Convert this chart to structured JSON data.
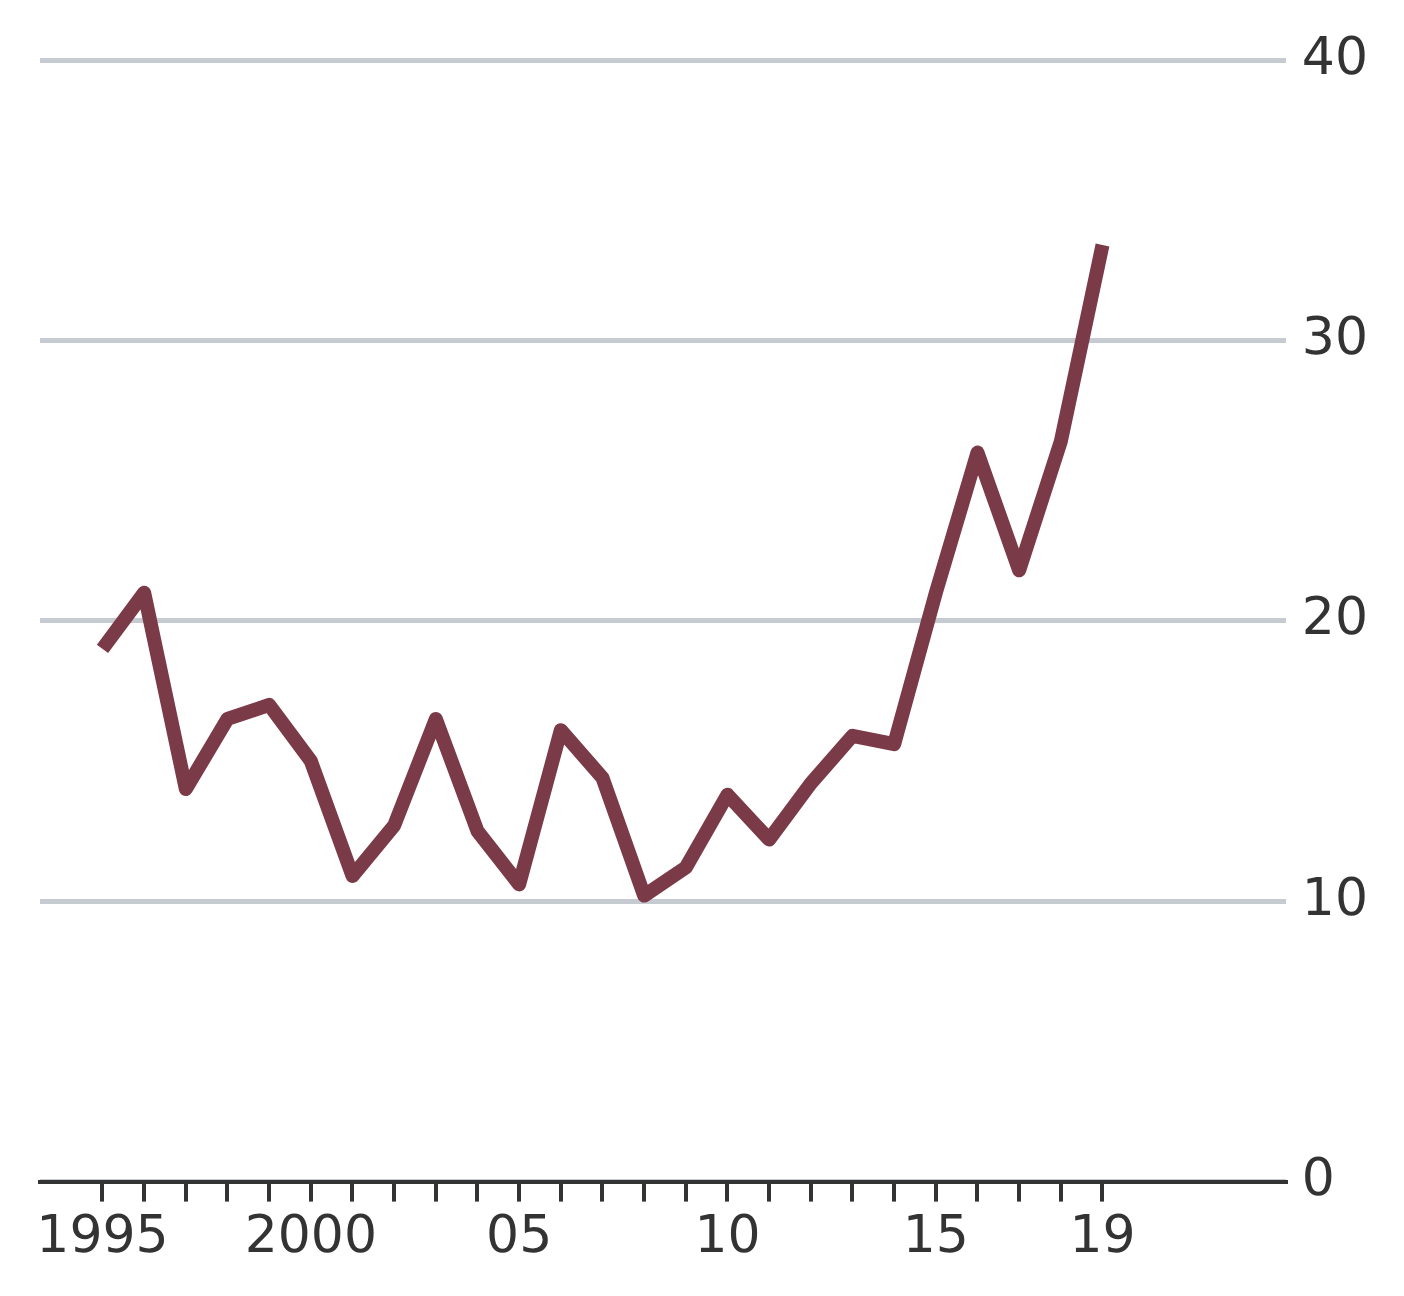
{
  "chart_data": {
    "type": "line",
    "x": [
      1995,
      1996,
      1997,
      1998,
      1999,
      2000,
      2001,
      2002,
      2003,
      2004,
      2005,
      2006,
      2007,
      2008,
      2009,
      2010,
      2011,
      2012,
      2013,
      2014,
      2015,
      2016,
      2017,
      2018,
      2019
    ],
    "series": [
      {
        "color": "#7b3a47",
        "values": [
          19.0,
          21.0,
          14.0,
          16.5,
          17.0,
          15.0,
          10.9,
          12.7,
          16.5,
          12.5,
          10.6,
          16.1,
          14.4,
          10.2,
          11.2,
          13.8,
          12.2,
          14.2,
          15.9,
          15.6,
          21.0,
          26.0,
          21.8,
          26.4,
          33.4
        ]
      }
    ],
    "xlim": [
      1993.5,
      2023.4
    ],
    "xticks": [
      {
        "value": 1995,
        "label": "1995"
      },
      {
        "value": 1996,
        "label": null
      },
      {
        "value": 1997,
        "label": null
      },
      {
        "value": 1998,
        "label": null
      },
      {
        "value": 1999,
        "label": null
      },
      {
        "value": 2000,
        "label": "2000"
      },
      {
        "value": 2001,
        "label": null
      },
      {
        "value": 2002,
        "label": null
      },
      {
        "value": 2003,
        "label": null
      },
      {
        "value": 2004,
        "label": null
      },
      {
        "value": 2005,
        "label": "05"
      },
      {
        "value": 2006,
        "label": null
      },
      {
        "value": 2007,
        "label": null
      },
      {
        "value": 2008,
        "label": null
      },
      {
        "value": 2009,
        "label": null
      },
      {
        "value": 2010,
        "label": "10"
      },
      {
        "value": 2011,
        "label": null
      },
      {
        "value": 2012,
        "label": null
      },
      {
        "value": 2013,
        "label": null
      },
      {
        "value": 2014,
        "label": null
      },
      {
        "value": 2015,
        "label": "15"
      },
      {
        "value": 2016,
        "label": null
      },
      {
        "value": 2017,
        "label": null
      },
      {
        "value": 2018,
        "label": null
      },
      {
        "value": 2019,
        "label": "19"
      }
    ],
    "ylim": [
      0,
      40
    ],
    "yticks": [
      0,
      10,
      20,
      30,
      40
    ],
    "grid": "y",
    "legend": false,
    "marker": "none",
    "line_style": "solid"
  }
}
